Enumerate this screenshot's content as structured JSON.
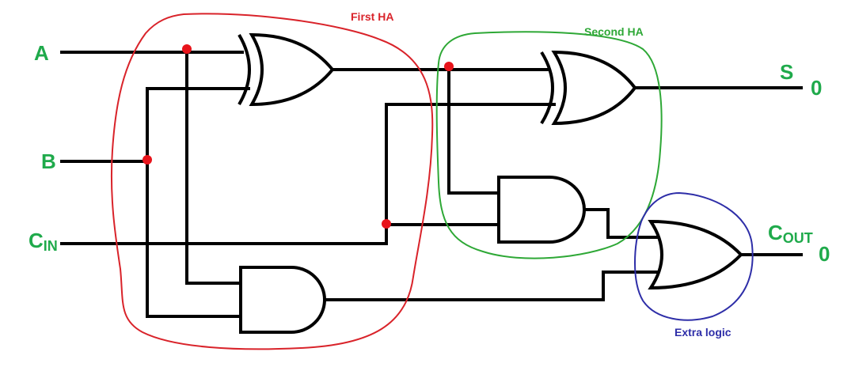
{
  "inputs": {
    "a": "A",
    "b": "B",
    "cin_main": "C",
    "cin_sub": "IN"
  },
  "outputs": {
    "s": "S",
    "s_value": "0",
    "cout_main": "C",
    "cout_sub": "OUT",
    "cout_value": "0"
  },
  "regions": {
    "first_ha": "First HA",
    "second_ha": "Second HA",
    "extra_logic": "Extra logic"
  },
  "colors": {
    "io_label": "#1faa4b",
    "first_ha": "#d9232a",
    "second_ha": "#2ea836",
    "extra_logic": "#2e2ea8",
    "junction": "#e8141b"
  }
}
